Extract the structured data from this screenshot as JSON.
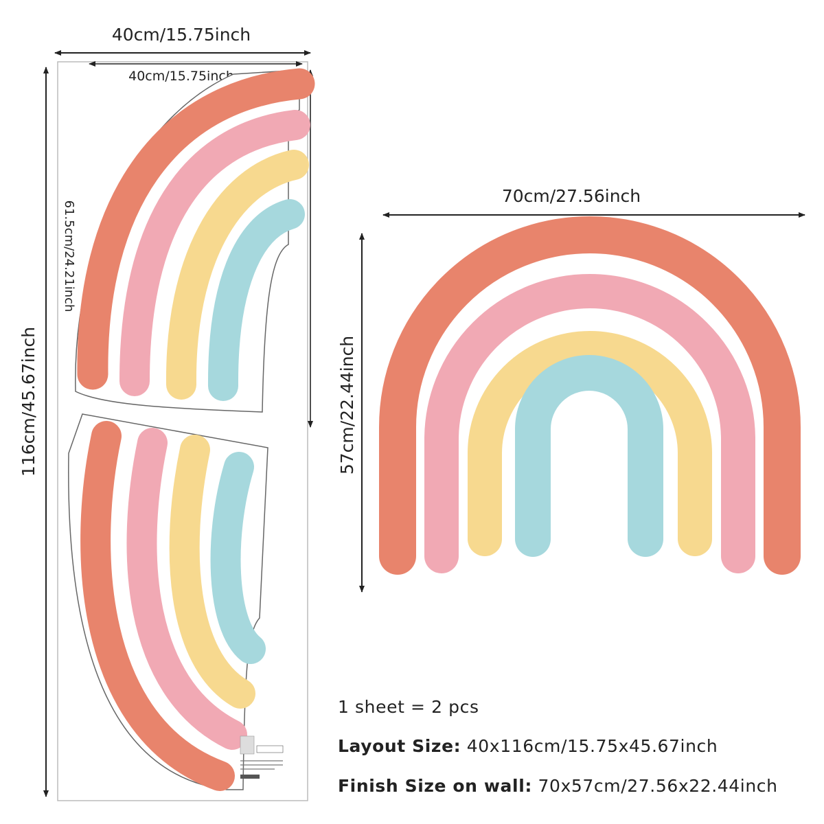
{
  "sheet": {
    "top_width_label": "40cm/15.75inch",
    "inner_width_label": "40cm/15.75inch",
    "height_label": "116cm/45.67inch",
    "piece_height_label": "61.5cm/24.21inch"
  },
  "finished": {
    "width_label": "70cm/27.56inch",
    "height_label": "57cm/22.44inch"
  },
  "info": {
    "line1": "1 sheet = 2 pcs",
    "line2_label": "Layout Size:",
    "line2_value": "40x116cm/15.75x45.67inch",
    "line3_label": "Finish Size on wall:",
    "line3_value": "70x57cm/27.56x22.44inch"
  },
  "colors": {
    "coral": "#e8846c",
    "pink": "#f1a9b4",
    "yellow": "#f7d98f",
    "blue": "#a6d8dd",
    "line": "#222222"
  }
}
